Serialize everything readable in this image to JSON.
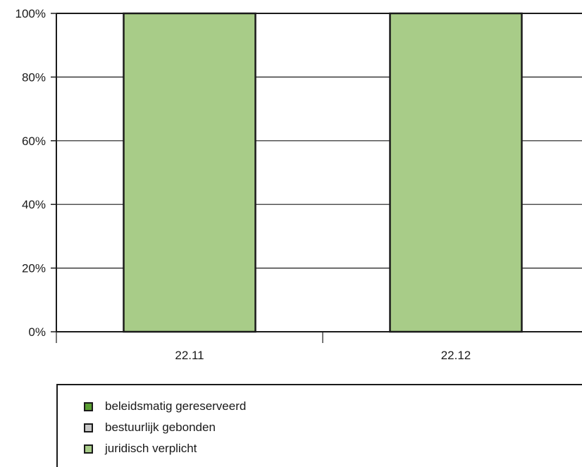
{
  "chart_data": {
    "type": "bar",
    "stacked": true,
    "categories": [
      "22.11",
      "22.12"
    ],
    "series": [
      {
        "name": "beleidsmatig gereserveerd",
        "color": "#5a9e32",
        "values": [
          0,
          0
        ]
      },
      {
        "name": "bestuurlijk gebonden",
        "color": "#c8c8c8",
        "values": [
          0,
          0
        ]
      },
      {
        "name": "juridisch verplicht",
        "color": "#a8cc88",
        "values": [
          100,
          100
        ]
      }
    ],
    "y_ticks": [
      "0%",
      "20%",
      "40%",
      "60%",
      "80%",
      "100%"
    ],
    "ylim": [
      0,
      100
    ],
    "grid": true,
    "legend_position": "bottom"
  }
}
